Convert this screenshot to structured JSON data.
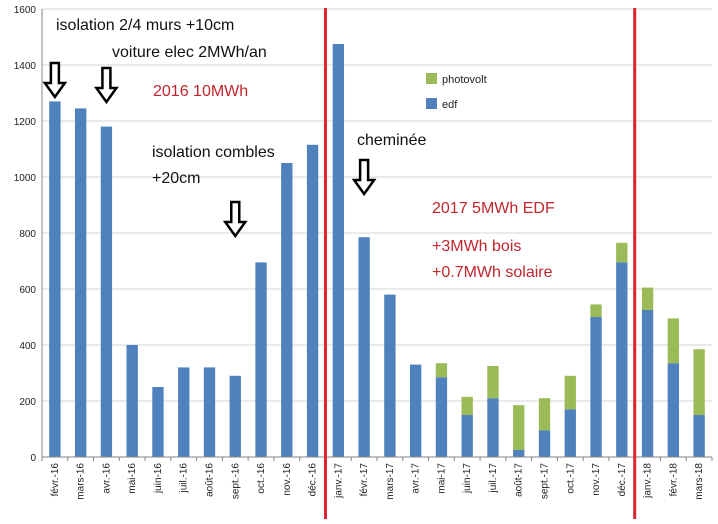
{
  "chart_data": {
    "type": "bar",
    "stacked": true,
    "categories": [
      "févr.-16",
      "mars-16",
      "avr.-16",
      "mai-16",
      "juin-16",
      "juil.-16",
      "août-16",
      "sept.-16",
      "oct.-16",
      "nov.-16",
      "déc.-16",
      "janv.-17",
      "févr.-17",
      "mars-17",
      "avr.-17",
      "mai-17",
      "juin-17",
      "juil.-17",
      "août-17",
      "sept.-17",
      "oct.-17",
      "nov.-17",
      "déc.-17",
      "janv.-18",
      "févr.-18",
      "mars-18"
    ],
    "series": [
      {
        "name": "edf",
        "color": "#4f81bd",
        "values": [
          1270,
          1245,
          1180,
          400,
          250,
          320,
          320,
          290,
          695,
          1050,
          1115,
          1475,
          785,
          580,
          330,
          285,
          150,
          210,
          25,
          95,
          170,
          500,
          695,
          525,
          335,
          150
        ]
      },
      {
        "name": "photovolt",
        "color": "#9bbb59",
        "values": [
          0,
          0,
          0,
          0,
          0,
          0,
          0,
          0,
          0,
          0,
          0,
          0,
          0,
          0,
          0,
          50,
          65,
          115,
          160,
          115,
          120,
          45,
          70,
          80,
          160,
          235
        ]
      }
    ],
    "ylim": [
      0,
      1600
    ],
    "yticks": [
      0,
      200,
      400,
      600,
      800,
      1000,
      1200,
      1400,
      1600
    ],
    "title": "",
    "xlabel": "",
    "ylabel": "",
    "legend": {
      "position": "upper-middle",
      "entries": [
        "photovolt",
        "edf"
      ]
    },
    "separators_after": [
      "déc.-16",
      "déc.-17"
    ],
    "separator_color": "#d9262c",
    "arrows_at": [
      "févr.-16",
      "avr.-16",
      "sept.-16",
      "févr.-17"
    ],
    "annotations": [
      {
        "text": "isolation 2/4 murs +10cm",
        "color": "#111111"
      },
      {
        "text": "voiture elec  2MWh/an",
        "color": "#111111"
      },
      {
        "text": "2016 10MWh",
        "color": "#c0262c"
      },
      {
        "text": "isolation combles",
        "color": "#111111"
      },
      {
        "text": "+20cm",
        "color": "#111111"
      },
      {
        "text": "cheminée",
        "color": "#111111"
      },
      {
        "text": "2017 5MWh EDF",
        "color": "#c0262c"
      },
      {
        "text": "+3MWh bois",
        "color": "#c0262c"
      },
      {
        "text": "+0.7MWh solaire",
        "color": "#c0262c"
      }
    ]
  }
}
